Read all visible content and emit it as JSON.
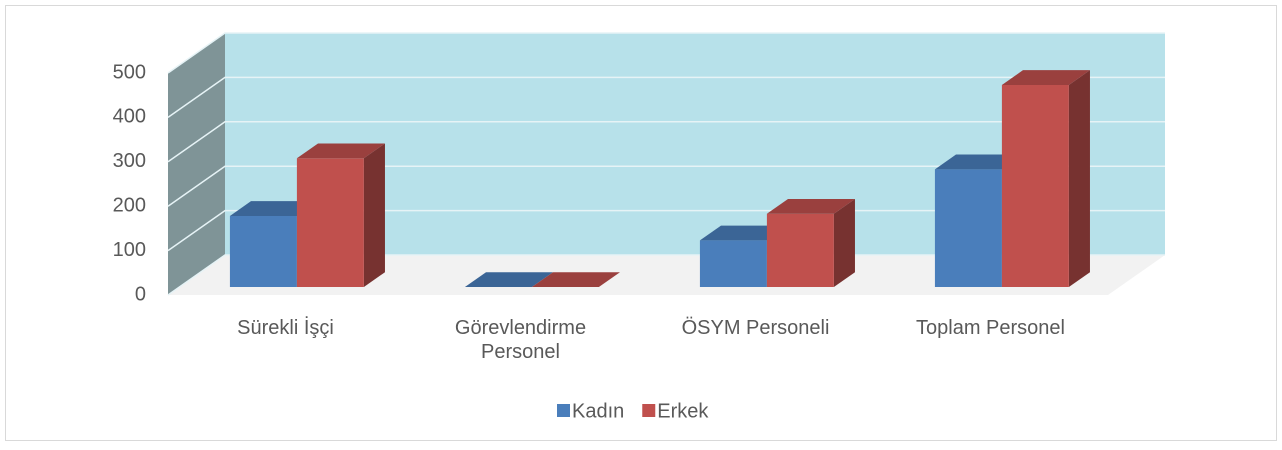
{
  "chart_data": {
    "type": "bar3d",
    "categories": [
      "Sürekli İşçi",
      "Görevlendirme Personel",
      "ÖSYM Personeli",
      "Toplam Personel"
    ],
    "series": [
      {
        "name": "Kadın",
        "color": "#4a7ebb",
        "values": [
          160,
          0,
          105,
          265
        ]
      },
      {
        "name": "Erkek",
        "color": "#c0504d",
        "values": [
          290,
          0,
          165,
          455
        ]
      }
    ],
    "ylim": [
      0,
      500
    ],
    "yticks": [
      0,
      100,
      200,
      300,
      400,
      500
    ],
    "grid": true,
    "legend": "bottom"
  }
}
